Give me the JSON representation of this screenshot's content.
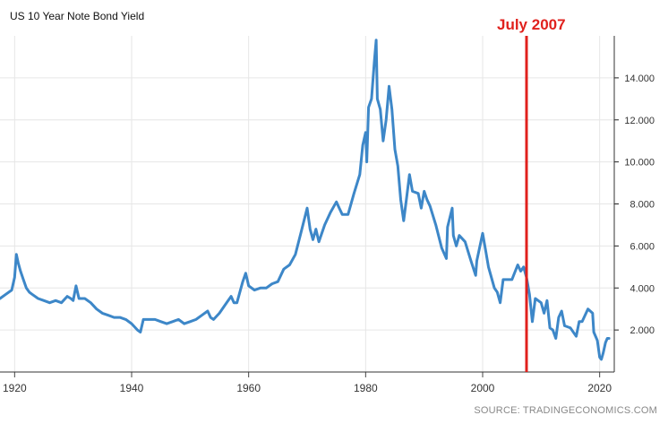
{
  "chart_data": {
    "type": "line",
    "title": "US 10 Year Note Bond Yield",
    "source": "SOURCE: TRADINGECONOMICS.COM",
    "annotation": {
      "label": "July 2007",
      "x": 2007.5,
      "color": "#e0211d"
    },
    "line_color": "#3d87c8",
    "xlim": [
      1917.5,
      2022.5
    ],
    "ylim": [
      0,
      16
    ],
    "x_ticks": [
      1920,
      1940,
      1960,
      1980,
      2000,
      2020
    ],
    "y_ticks": [
      2,
      4,
      6,
      8,
      10,
      12,
      14
    ],
    "y_tick_labels": [
      "2.000",
      "4.000",
      "6.000",
      "8.000",
      "10.000",
      "12.000",
      "14.000"
    ],
    "x_tick_labels": [
      "1920",
      "1940",
      "1960",
      "1980",
      "2000",
      "2020"
    ],
    "grid": true,
    "series": [
      {
        "x": [
          1917.5,
          1918.5,
          1919.5,
          1920,
          1920.3,
          1920.6,
          1921,
          1921.5,
          1922,
          1922.5,
          1923,
          1924,
          1925,
          1926,
          1927,
          1928,
          1929,
          1929.6,
          1930,
          1930.5,
          1931,
          1932,
          1933,
          1934,
          1935,
          1936,
          1937,
          1938,
          1939,
          1940,
          1941,
          1941.5,
          1942,
          1943,
          1944,
          1945,
          1946,
          1947,
          1948,
          1949,
          1950,
          1951,
          1952,
          1953,
          1953.5,
          1954,
          1955,
          1956,
          1957,
          1957.5,
          1958,
          1959,
          1959.5,
          1960,
          1961,
          1962,
          1963,
          1964,
          1965,
          1966,
          1967,
          1968,
          1969,
          1970,
          1970.5,
          1971,
          1971.5,
          1972,
          1973,
          1974,
          1975,
          1975.5,
          1976,
          1977,
          1978,
          1979,
          1979.5,
          1980,
          1980.2,
          1980.5,
          1981,
          1981.5,
          1981.8,
          1982,
          1982.5,
          1983,
          1983.5,
          1984,
          1984.5,
          1985,
          1985.5,
          1986,
          1986.5,
          1987,
          1987.5,
          1988,
          1989,
          1989.5,
          1990,
          1990.5,
          1991,
          1992,
          1993,
          1993.8,
          1994,
          1994.8,
          1995,
          1995.5,
          1996,
          1997,
          1998,
          1998.8,
          1999,
          2000,
          2000.5,
          2001,
          2002,
          2002.5,
          2003,
          2003.5,
          2004,
          2005,
          2006,
          2006.5,
          2007,
          2007.5,
          2008,
          2008.5,
          2009,
          2010,
          2010.5,
          2011,
          2011.5,
          2012,
          2012.5,
          2013,
          2013.5,
          2014,
          2015,
          2016,
          2016.5,
          2017,
          2018,
          2018.8,
          2019,
          2019.6,
          2020,
          2020.3,
          2020.6,
          2021,
          2021.3,
          2021.6
        ],
        "y": [
          3.5,
          3.7,
          3.9,
          4.5,
          5.6,
          5.2,
          4.8,
          4.4,
          4.0,
          3.8,
          3.7,
          3.5,
          3.4,
          3.3,
          3.4,
          3.3,
          3.6,
          3.5,
          3.4,
          4.1,
          3.5,
          3.5,
          3.3,
          3.0,
          2.8,
          2.7,
          2.6,
          2.6,
          2.5,
          2.3,
          2.0,
          1.9,
          2.5,
          2.5,
          2.5,
          2.4,
          2.3,
          2.4,
          2.5,
          2.3,
          2.4,
          2.5,
          2.7,
          2.9,
          2.6,
          2.5,
          2.8,
          3.2,
          3.6,
          3.3,
          3.3,
          4.3,
          4.7,
          4.1,
          3.9,
          4.0,
          4.0,
          4.2,
          4.3,
          4.9,
          5.1,
          5.6,
          6.7,
          7.8,
          6.8,
          6.3,
          6.8,
          6.2,
          7.0,
          7.6,
          8.1,
          7.8,
          7.5,
          7.5,
          8.5,
          9.4,
          10.8,
          11.4,
          10.0,
          12.6,
          13.0,
          14.8,
          15.8,
          13.0,
          12.5,
          11.0,
          12.0,
          13.6,
          12.5,
          10.6,
          9.8,
          8.2,
          7.2,
          8.3,
          9.4,
          8.6,
          8.5,
          7.8,
          8.6,
          8.2,
          7.9,
          7.0,
          5.9,
          5.4,
          6.9,
          7.8,
          6.5,
          6.0,
          6.5,
          6.2,
          5.3,
          4.6,
          5.3,
          6.6,
          5.8,
          5.0,
          4.0,
          3.8,
          3.3,
          4.4,
          4.4,
          4.4,
          5.1,
          4.8,
          5.0,
          4.5,
          3.7,
          2.4,
          3.5,
          3.3,
          2.8,
          3.4,
          2.1,
          2.0,
          1.6,
          2.6,
          2.9,
          2.2,
          2.1,
          1.7,
          2.4,
          2.4,
          3.0,
          2.8,
          1.9,
          1.5,
          0.7,
          0.6,
          0.9,
          1.4,
          1.6,
          1.6
        ]
      }
    ]
  }
}
